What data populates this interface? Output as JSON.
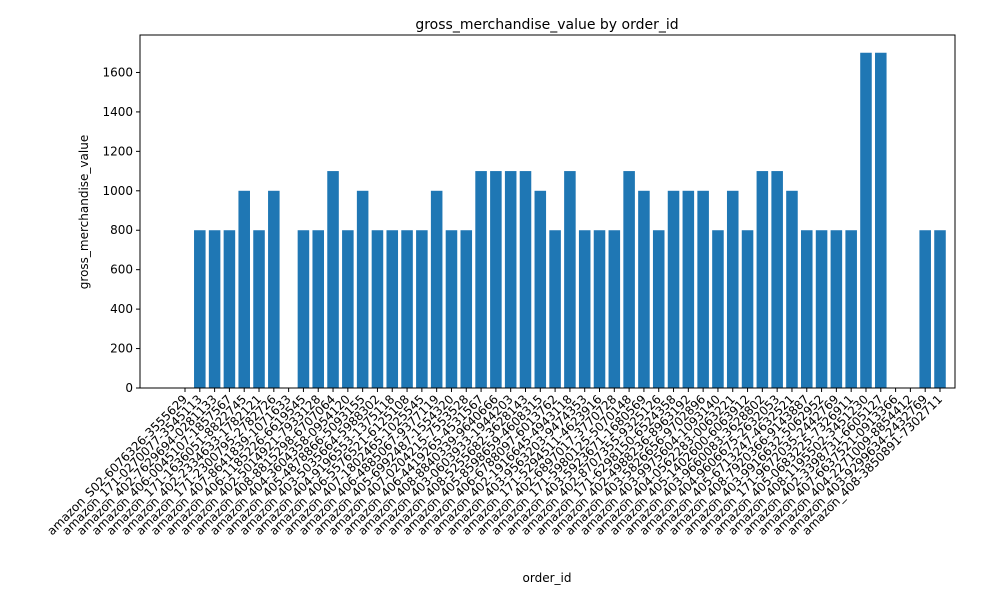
{
  "chart_data": {
    "type": "bar",
    "title": "gross_merchandise_value by order_id",
    "xlabel": "order_id",
    "ylabel": "gross_merchandise_value",
    "color": "#1f77b4",
    "categories": [
      "amazon_S02-6076326-3555629",
      "amazon_171-0270077-3545113",
      "amazon_402-7629694-0281133",
      "amazon_406-0045107-1857567",
      "amazon_171-1636051-8822745",
      "amazon_402-2334633-1782121",
      "amazon_171-2300795-2782726",
      "amazon_407-8641839-1071633",
      "amazon_406-1185226-6619545",
      "amazon_402-5014921-7933128",
      "amazon_408-8815298-6707064",
      "amazon_404-3604358-0954120",
      "amazon_405-4878866-5093155",
      "amazon_403-5035664-5988302",
      "amazon_404-9196553-1375118",
      "amazon_406-5576521-6125108",
      "amazon_407-1802465-1025545",
      "amazon_406-4885067-9377119",
      "amazon_405-6992487-1554320",
      "amazon_407-0204215-7553528",
      "amazon_406-4419265-4531567",
      "amazon_408-8840339-9640666",
      "amazon_403-0603933-1944203",
      "amazon_408-5255682-3628143",
      "amazon_405-8598659-4608315",
      "amazon_406-6788097-6013762",
      "amazon_402-1916645-4943118",
      "amazon_403-9563203-9474353",
      "amazon_171-5294511-4623916",
      "amazon_402-6897017-3770728",
      "amazon_171-5980125-5070148",
      "amazon_403-5923671-1680569",
      "amazon_402-8707355-9325126",
      "amazon_171-6298150-6524358",
      "amazon_402-4988236-8963192",
      "amazon_403-5826656-9702896",
      "amazon_403-9975604-1093140",
      "amazon_404-0562283-0063221",
      "amazon_405-1402600-6063912",
      "amazon_403-9660083-3628802",
      "amazon_404-9606675-2632053",
      "amazon_405-6713247-4632521",
      "amazon_408-7920366-9143887",
      "amazon_403-9916632-5062952",
      "amazon_171-9672035-2442769",
      "amazon_405-0683225-7326911",
      "amazon_408-1195502-3451230",
      "amazon_402-3398731-6605127",
      "amazon_407-6637521-0913366",
      "amazon_404-2271009-8854412",
      "amazon_403-9299634-2432769",
      "amazon_408-3850891-7302711"
    ],
    "values": [
      0,
      800,
      800,
      800,
      1000,
      800,
      1000,
      0,
      800,
      800,
      1100,
      800,
      1000,
      800,
      800,
      800,
      800,
      1000,
      800,
      800,
      1100,
      1100,
      1100,
      1100,
      1000,
      800,
      1100,
      800,
      800,
      800,
      1100,
      1000,
      800,
      1000,
      1000,
      1000,
      800,
      1000,
      800,
      1100,
      1100,
      1000,
      800,
      800,
      800,
      800,
      1700,
      1700,
      0,
      0,
      800,
      800
    ],
    "ylim": [
      0,
      1790
    ],
    "yticks": [
      0,
      200,
      400,
      600,
      800,
      1000,
      1200,
      1400,
      1600
    ]
  }
}
